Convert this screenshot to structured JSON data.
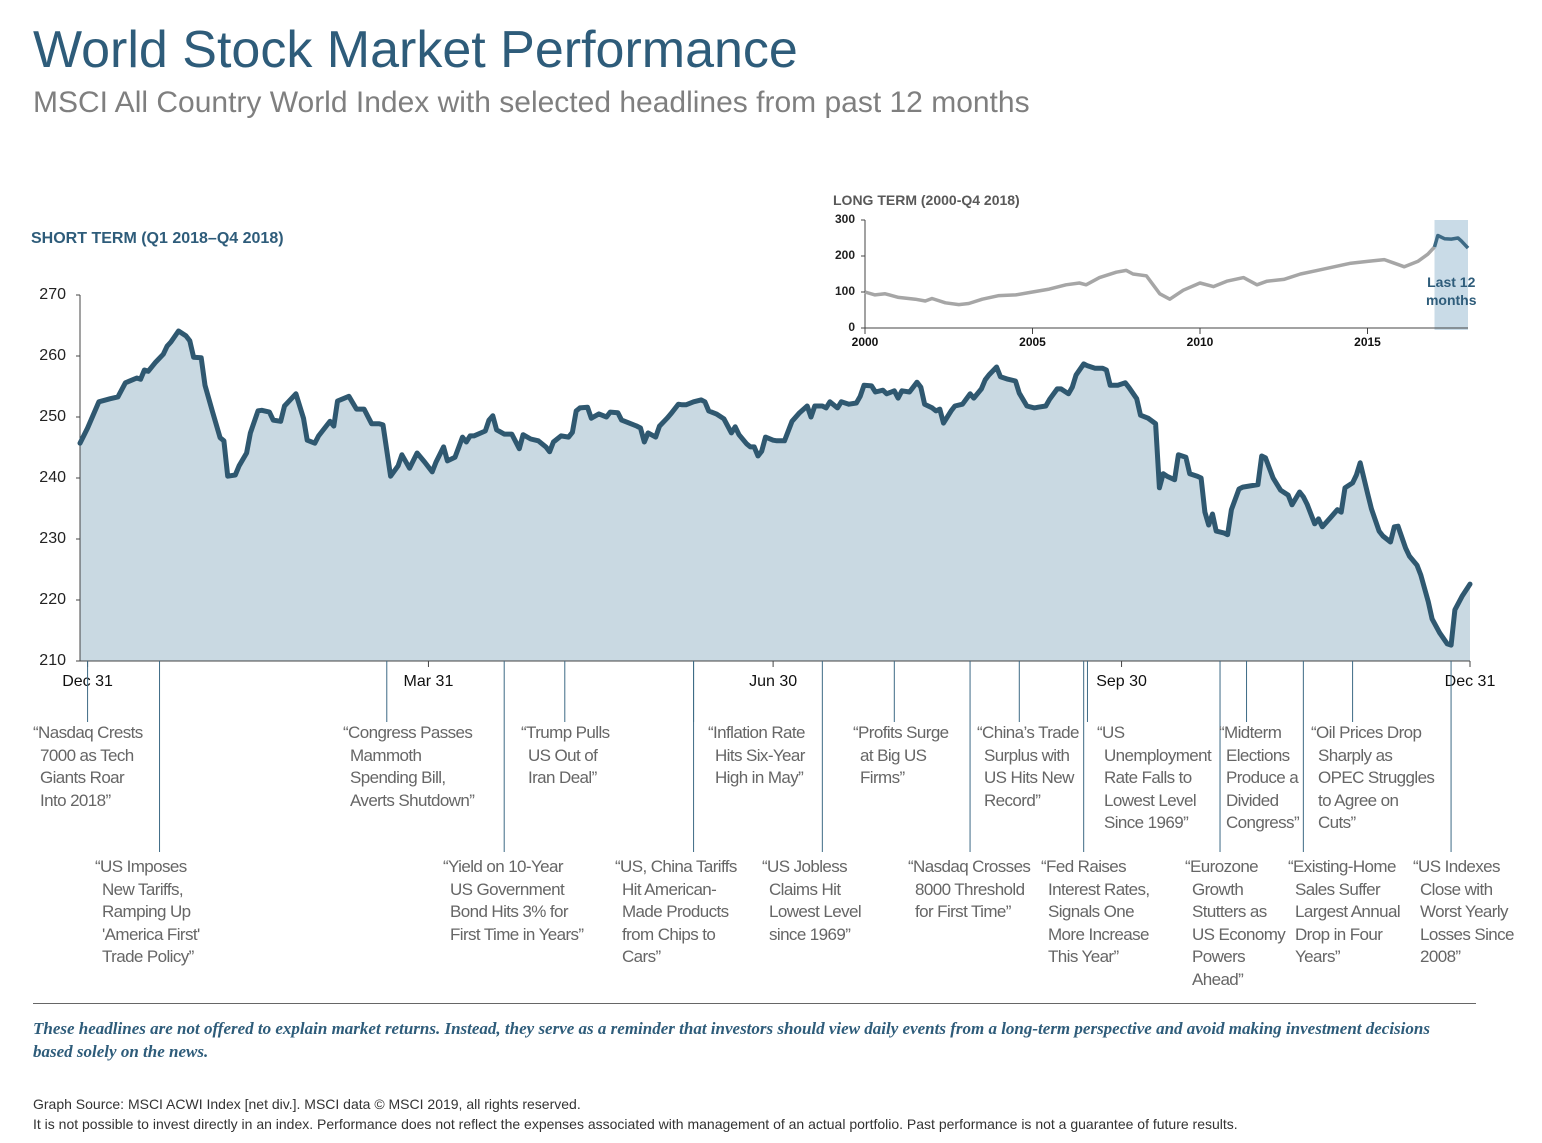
{
  "header": {
    "title": "World Stock Market Performance",
    "subtitle": "MSCI All Country World Index with selected headlines from past 12 months"
  },
  "chart_data": [
    {
      "type": "area",
      "title": "SHORT TERM (Q1 2018–Q4 2018)",
      "color": "#2f5870",
      "fill": "#c9d9e2",
      "xlim": [
        -2,
        365
      ],
      "xticks": [
        {
          "value": 0,
          "label": "Dec 31"
        },
        {
          "value": 90,
          "label": "Mar 31"
        },
        {
          "value": 181,
          "label": "Jun 30"
        },
        {
          "value": 273,
          "label": "Sep 30"
        },
        {
          "value": 365,
          "label": "Dec 31"
        }
      ],
      "ylim": [
        210,
        270
      ],
      "yticks": [
        210,
        220,
        230,
        240,
        250,
        260,
        270
      ],
      "x": [
        -2,
        0,
        3,
        6,
        8,
        10,
        13,
        14,
        15,
        16,
        18,
        20,
        21,
        22,
        24,
        26,
        27,
        28,
        30,
        31,
        33,
        35,
        36,
        37,
        39,
        40,
        42,
        43,
        45,
        46,
        48,
        49,
        51,
        52,
        55,
        57,
        58,
        60,
        61,
        63,
        64,
        65,
        66,
        69,
        71,
        73,
        75,
        77,
        78,
        80,
        82,
        83,
        85,
        87,
        89,
        91,
        92,
        94,
        95,
        97,
        99,
        100,
        101,
        102,
        105,
        106,
        107,
        108,
        110,
        112,
        114,
        115,
        117,
        119,
        121,
        122,
        123,
        125,
        127,
        128,
        129,
        130,
        132,
        133,
        135,
        137,
        138,
        140,
        141,
        143,
        145,
        146,
        147,
        148,
        150,
        151,
        153,
        154,
        156,
        157,
        158,
        160,
        162,
        163,
        164,
        166,
        168,
        170,
        171,
        172,
        174,
        175,
        176,
        177,
        178,
        179,
        181,
        182,
        184,
        186,
        188,
        190,
        191,
        192,
        194,
        195,
        196,
        198,
        199,
        201,
        203,
        204,
        205,
        207,
        208,
        210,
        211,
        213,
        214,
        215,
        217,
        219,
        220,
        221,
        223,
        224,
        225,
        226,
        228,
        229,
        231,
        233,
        234,
        236,
        237,
        238,
        240,
        241,
        243,
        245,
        246,
        248,
        250,
        251,
        253,
        254,
        256,
        257,
        259,
        260,
        261,
        263,
        264,
        266,
        268,
        269,
        270,
        272,
        274,
        275,
        277,
        278,
        280,
        282,
        283,
        284,
        285,
        287,
        288,
        290,
        291,
        293,
        294,
        295,
        296,
        297,
        298,
        300,
        301,
        302,
        304,
        305,
        307,
        309,
        310,
        311,
        313,
        315,
        317,
        318,
        320,
        321,
        322,
        324,
        325,
        326,
        328,
        330,
        331,
        332,
        334,
        335,
        336,
        338,
        339,
        341,
        342,
        344,
        345,
        346,
        348,
        349,
        351,
        352,
        354,
        355,
        357,
        359,
        360,
        361,
        363,
        365
      ],
      "values": [
        245.7,
        248.2,
        252.5,
        253,
        253.3,
        255.6,
        256.4,
        256.2,
        257.7,
        257.5,
        259,
        260.3,
        261.6,
        262.3,
        264.1,
        263.3,
        262.5,
        259.8,
        259.7,
        255.2,
        250.8,
        246.6,
        246.1,
        240.3,
        240.5,
        242,
        244.1,
        247.4,
        251,
        251.1,
        250.8,
        249.5,
        249.3,
        251.8,
        253.8,
        249.8,
        246.2,
        245.7,
        246.9,
        248.5,
        249.3,
        248.5,
        252.6,
        253.4,
        251.3,
        251.3,
        248.9,
        248.9,
        248.7,
        240.3,
        242,
        243.8,
        241.6,
        244.1,
        242.6,
        241,
        242.6,
        245.1,
        242.8,
        243.4,
        246.7,
        245.9,
        246.9,
        246.9,
        247.7,
        249.5,
        250.2,
        247.9,
        247.2,
        247.2,
        244.8,
        247.1,
        246.4,
        246.1,
        245.1,
        244.3,
        245.9,
        246.9,
        246.7,
        247.5,
        251,
        251.5,
        251.6,
        249.8,
        250.5,
        250,
        250.8,
        250.7,
        249.5,
        249,
        248.5,
        248.2,
        245.9,
        247.4,
        246.7,
        248.5,
        249.8,
        250.5,
        252.1,
        252,
        252,
        252.5,
        252.8,
        252.5,
        251,
        250.5,
        249.7,
        247.4,
        248.4,
        247.1,
        245.6,
        245.1,
        245.1,
        243.6,
        244.4,
        246.7,
        246.2,
        246.1,
        246.1,
        249.3,
        250.7,
        251.8,
        250,
        251.8,
        251.8,
        251.5,
        252.5,
        251.5,
        252.5,
        252.1,
        252.3,
        253.4,
        255.2,
        255.1,
        254.1,
        254.4,
        253.8,
        254.3,
        253.1,
        254.3,
        254.1,
        255.7,
        254.9,
        252.1,
        251.5,
        251,
        251.3,
        249,
        251,
        251.8,
        252.1,
        253.8,
        253.1,
        254.6,
        256.1,
        256.9,
        258.2,
        256.6,
        256.2,
        255.9,
        253.9,
        251.8,
        251.5,
        251.6,
        251.8,
        252.9,
        254.6,
        254.6,
        253.8,
        254.9,
        256.9,
        258.7,
        258.4,
        258,
        258,
        257.7,
        255.2,
        255.2,
        255.6,
        254.8,
        253,
        250.3,
        249.8,
        248.9,
        238.4,
        240.7,
        240.3,
        239.7,
        243.8,
        243.4,
        240.7,
        240.3,
        240,
        234.4,
        232.3,
        234.1,
        231.3,
        231,
        230.7,
        234.8,
        238.2,
        238.5,
        238.7,
        238.9,
        243.6,
        243.3,
        240,
        238,
        237.2,
        235.6,
        237.7,
        236.9,
        235.7,
        232.5,
        233.3,
        232,
        233.4,
        234.8,
        234.4,
        238.4,
        239.2,
        240.5,
        242.5,
        237.4,
        234.9,
        231.3,
        230.5,
        229.5,
        232,
        232.1,
        228.5,
        227.2,
        225.7,
        224.1,
        219.7,
        216.9,
        214.6,
        212.8,
        212.6,
        218.4,
        220.7,
        222.6
      ],
      "annotations": [
        {
          "x": 0,
          "lines": [
            "“Nasdaq Crests",
            "7000 as Tech",
            "Giants Roar",
            "Into 2018”"
          ]
        },
        {
          "x": 19,
          "lines": [
            "“US Imposes",
            "New Tariffs,",
            "Ramping Up",
            "'America First'",
            "Trade Policy”"
          ]
        },
        {
          "x": 79,
          "lines": [
            "“Congress Passes",
            "Mammoth",
            "Spending Bill,",
            "Averts Shutdown”"
          ]
        },
        {
          "x": 110,
          "lines": [
            "“Yield on 10-Year",
            "US Government",
            "Bond Hits 3% for",
            "First Time in Years”"
          ]
        },
        {
          "x": 126,
          "lines": [
            "“Trump Pulls",
            "US Out of",
            "Iran Deal”"
          ]
        },
        {
          "x": 160,
          "lines": [
            "“US, China Tariffs",
            "Hit American-",
            "Made Products",
            "from Chips to",
            "Cars”"
          ]
        },
        {
          "x": 160,
          "lines": [
            "“Inflation Rate",
            "Hits Six-Year",
            "High in May”"
          ]
        },
        {
          "x": 194,
          "lines": [
            "“US Jobless",
            "Claims Hit",
            "Lowest Level",
            "since 1969”"
          ]
        },
        {
          "x": 213,
          "lines": [
            "“Profits Surge",
            "at Big US",
            "Firms”"
          ]
        },
        {
          "x": 233,
          "lines": [
            "“Nasdaq Crosses",
            "8000 Threshold",
            "for First Time”"
          ]
        },
        {
          "x": 246,
          "lines": [
            "“China’s Trade",
            "Surplus with",
            "US Hits New",
            "Record”"
          ]
        },
        {
          "x": 263,
          "lines": [
            "“Fed Raises",
            "Interest Rates,",
            "Signals One",
            "More Increase",
            "This Year”"
          ]
        },
        {
          "x": 264,
          "lines": [
            "“US",
            "Unemployment",
            "Rate Falls to",
            "Lowest Level",
            "Since 1969”"
          ]
        },
        {
          "x": 299,
          "lines": [
            "“Eurozone",
            "Growth",
            "Stutters as",
            "US Economy",
            "Powers",
            "Ahead”"
          ]
        },
        {
          "x": 306,
          "lines": [
            "“Midterm",
            "Elections",
            "Produce a",
            "Divided",
            "Congress”"
          ]
        },
        {
          "x": 321,
          "lines": [
            "“Existing-Home",
            "Sales Suffer",
            "Largest Annual",
            "Drop in Four",
            "Years”"
          ]
        },
        {
          "x": 334,
          "lines": [
            "“Oil Prices Drop",
            "Sharply as",
            "OPEC Struggles",
            "to Agree on",
            "Cuts”"
          ]
        },
        {
          "x": 360,
          "lines": [
            "“US Indexes",
            "Close with",
            "Worst Yearly",
            "Losses Since",
            "2008”"
          ]
        }
      ]
    },
    {
      "type": "line",
      "title": "LONG TERM (2000-Q4 2018)",
      "xlim": [
        2000,
        2018
      ],
      "xticks": [
        2000,
        2005,
        2010,
        2015
      ],
      "ylim": [
        0,
        300
      ],
      "yticks": [
        0,
        100,
        200,
        300
      ],
      "highlight": {
        "range": [
          2017,
          2018
        ],
        "label": "Last 12 months",
        "color": "#c9dbe7"
      },
      "series": [
        {
          "color": "#a6a6a6",
          "x": [
            2000,
            2000.3,
            2000.6,
            2001,
            2001.5,
            2001.8,
            2002,
            2002.4,
            2002.8,
            2003.1,
            2003.5,
            2004,
            2004.5,
            2005,
            2005.5,
            2006,
            2006.4,
            2006.6,
            2007,
            2007.5,
            2007.8,
            2008,
            2008.4,
            2008.8,
            2009.1,
            2009.5,
            2010,
            2010.4,
            2010.8,
            2011.3,
            2011.7,
            2012,
            2012.5,
            2013,
            2013.5,
            2014,
            2014.5,
            2015,
            2015.5,
            2015.8,
            2016.1,
            2016.5,
            2016.8,
            2017
          ],
          "values": [
            100,
            92,
            95,
            85,
            80,
            75,
            82,
            70,
            65,
            68,
            80,
            90,
            92,
            100,
            108,
            120,
            125,
            120,
            140,
            155,
            160,
            150,
            145,
            95,
            80,
            105,
            125,
            115,
            130,
            140,
            120,
            130,
            135,
            150,
            160,
            170,
            180,
            185,
            190,
            180,
            170,
            185,
            205,
            225
          ]
        },
        {
          "color": "#3d6a85",
          "x": [
            2017,
            2017.1,
            2017.3,
            2017.5,
            2017.7,
            2017.8,
            2018
          ],
          "values": [
            225,
            257,
            248,
            247,
            250,
            242,
            222
          ]
        }
      ]
    }
  ],
  "footer": {
    "note": "These headlines are not offered to explain market returns. Instead, they serve as a reminder that investors should view daily events from a long-term perspective and avoid making investment decisions based solely on the news.",
    "sources": [
      "Graph Source: MSCI ACWI Index [net div.]. MSCI data © MSCI 2019, all rights reserved.",
      "It is not possible to invest directly in an index. Performance does not reflect the expenses associated with management of an actual portfolio. Past performance is not a guarantee of future results."
    ]
  }
}
